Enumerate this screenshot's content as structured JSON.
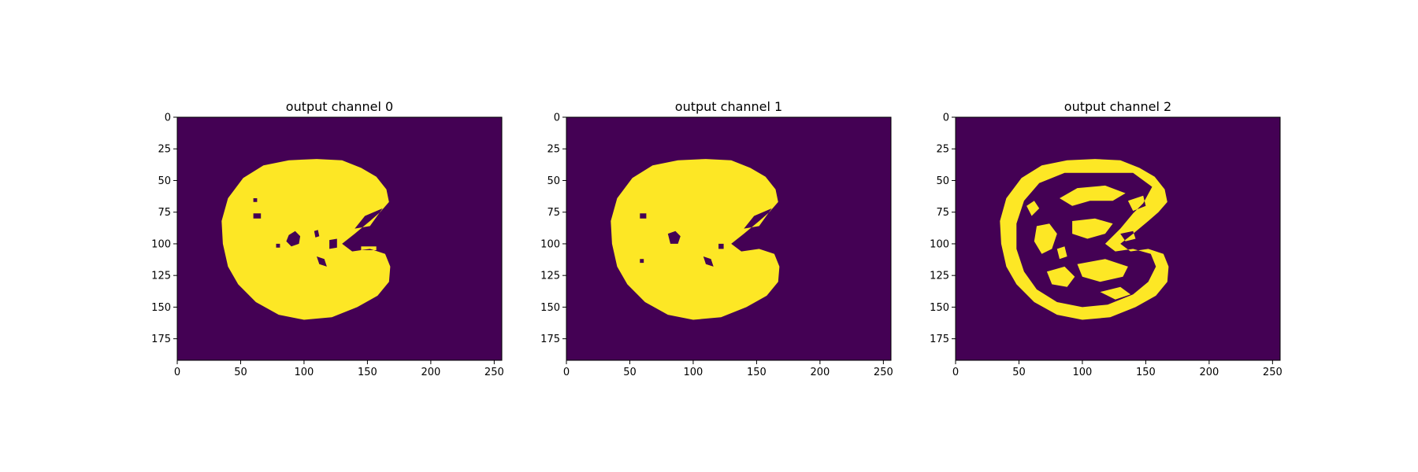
{
  "colors": {
    "background": "#440154",
    "foreground": "#fde725"
  },
  "chart_data": [
    {
      "type": "heatmap",
      "title": "output channel 0",
      "xlim": [
        0,
        256
      ],
      "ylim": [
        192,
        0
      ],
      "xticks": [
        0,
        50,
        100,
        150,
        200,
        250
      ],
      "yticks": [
        0,
        25,
        50,
        75,
        100,
        125,
        150,
        175
      ],
      "mask": {
        "outline": [
          [
            110,
            33
          ],
          [
            130,
            34
          ],
          [
            145,
            40
          ],
          [
            157,
            47
          ],
          [
            165,
            57
          ],
          [
            167,
            67
          ],
          [
            160,
            75
          ],
          [
            152,
            82
          ],
          [
            140,
            92
          ],
          [
            130,
            100
          ],
          [
            138,
            106
          ],
          [
            152,
            104
          ],
          [
            164,
            108
          ],
          [
            168,
            118
          ],
          [
            167,
            130
          ],
          [
            158,
            141
          ],
          [
            142,
            150
          ],
          [
            122,
            158
          ],
          [
            100,
            160
          ],
          [
            80,
            156
          ],
          [
            62,
            146
          ],
          [
            48,
            132
          ],
          [
            40,
            118
          ],
          [
            36,
            100
          ],
          [
            35,
            82
          ],
          [
            40,
            64
          ],
          [
            52,
            48
          ],
          [
            68,
            38
          ],
          [
            88,
            34
          ]
        ],
        "holes": [
          [
            [
              88,
              93
            ],
            [
              93,
              90
            ],
            [
              97,
              94
            ],
            [
              96,
              100
            ],
            [
              90,
              102
            ],
            [
              86,
              98
            ]
          ],
          [
            [
              60,
              76
            ],
            [
              66,
              76
            ],
            [
              66,
              80
            ],
            [
              60,
              80
            ]
          ],
          [
            [
              148,
              78
            ],
            [
              162,
              72
            ],
            [
              152,
              86
            ],
            [
              140,
              88
            ]
          ],
          [
            [
              120,
              97
            ],
            [
              126,
              96
            ],
            [
              126,
              103
            ],
            [
              120,
              104
            ]
          ],
          [
            [
              108,
              90
            ],
            [
              111,
              89
            ],
            [
              112,
              94
            ],
            [
              109,
              95
            ]
          ],
          [
            [
              145,
              102
            ],
            [
              157,
              102
            ],
            [
              157,
              105
            ],
            [
              145,
              105
            ]
          ],
          [
            [
              110,
              110
            ],
            [
              116,
              112
            ],
            [
              118,
              118
            ],
            [
              112,
              116
            ]
          ],
          [
            [
              60,
              64
            ],
            [
              63,
              64
            ],
            [
              63,
              67
            ],
            [
              60,
              67
            ]
          ],
          [
            [
              78,
              100
            ],
            [
              81,
              100
            ],
            [
              81,
              103
            ],
            [
              78,
              103
            ]
          ]
        ]
      }
    },
    {
      "type": "heatmap",
      "title": "output channel 1",
      "xlim": [
        0,
        256
      ],
      "ylim": [
        192,
        0
      ],
      "xticks": [
        0,
        50,
        100,
        150,
        200,
        250
      ],
      "yticks": [
        0,
        25,
        50,
        75,
        100,
        125,
        150,
        175
      ],
      "mask": {
        "outline": [
          [
            110,
            33
          ],
          [
            130,
            34
          ],
          [
            145,
            40
          ],
          [
            157,
            47
          ],
          [
            165,
            57
          ],
          [
            167,
            67
          ],
          [
            160,
            75
          ],
          [
            152,
            82
          ],
          [
            140,
            92
          ],
          [
            130,
            100
          ],
          [
            138,
            106
          ],
          [
            152,
            104
          ],
          [
            164,
            108
          ],
          [
            168,
            118
          ],
          [
            167,
            130
          ],
          [
            158,
            141
          ],
          [
            142,
            150
          ],
          [
            122,
            158
          ],
          [
            100,
            160
          ],
          [
            80,
            156
          ],
          [
            62,
            146
          ],
          [
            48,
            132
          ],
          [
            40,
            118
          ],
          [
            36,
            100
          ],
          [
            35,
            82
          ],
          [
            40,
            64
          ],
          [
            52,
            48
          ],
          [
            68,
            38
          ],
          [
            88,
            34
          ]
        ],
        "holes": [
          [
            [
              80,
              92
            ],
            [
              86,
              90
            ],
            [
              90,
              94
            ],
            [
              88,
              100
            ],
            [
              82,
              100
            ]
          ],
          [
            [
              58,
              76
            ],
            [
              63,
              76
            ],
            [
              63,
              80
            ],
            [
              58,
              80
            ]
          ],
          [
            [
              148,
              78
            ],
            [
              162,
              72
            ],
            [
              152,
              86
            ],
            [
              140,
              88
            ]
          ],
          [
            [
              108,
              110
            ],
            [
              114,
              112
            ],
            [
              116,
              118
            ],
            [
              110,
              116
            ]
          ],
          [
            [
              120,
              100
            ],
            [
              124,
              100
            ],
            [
              124,
              104
            ],
            [
              120,
              104
            ]
          ],
          [
            [
              58,
              112
            ],
            [
              61,
              112
            ],
            [
              61,
              115
            ],
            [
              58,
              115
            ]
          ]
        ]
      }
    },
    {
      "type": "heatmap",
      "title": "output channel 2",
      "xlim": [
        0,
        256
      ],
      "ylim": [
        192,
        0
      ],
      "xticks": [
        0,
        50,
        100,
        150,
        200,
        250
      ],
      "yticks": [
        0,
        25,
        50,
        75,
        100,
        125,
        150,
        175
      ],
      "mask": {
        "outline": [
          [
            110,
            33
          ],
          [
            130,
            34
          ],
          [
            145,
            40
          ],
          [
            157,
            47
          ],
          [
            165,
            57
          ],
          [
            167,
            67
          ],
          [
            160,
            75
          ],
          [
            152,
            82
          ],
          [
            140,
            92
          ],
          [
            130,
            100
          ],
          [
            138,
            106
          ],
          [
            152,
            104
          ],
          [
            164,
            108
          ],
          [
            168,
            118
          ],
          [
            167,
            130
          ],
          [
            158,
            141
          ],
          [
            142,
            150
          ],
          [
            122,
            158
          ],
          [
            100,
            160
          ],
          [
            80,
            156
          ],
          [
            62,
            146
          ],
          [
            48,
            132
          ],
          [
            40,
            118
          ],
          [
            36,
            100
          ],
          [
            35,
            82
          ],
          [
            40,
            64
          ],
          [
            52,
            48
          ],
          [
            68,
            38
          ],
          [
            88,
            34
          ]
        ],
        "holes": [
          [
            [
              110,
              44
            ],
            [
              140,
              44
            ],
            [
              155,
              55
            ],
            [
              148,
              68
            ],
            [
              140,
              76
            ],
            [
              130,
              88
            ],
            [
              118,
              100
            ],
            [
              126,
              106
            ],
            [
              140,
              104
            ],
            [
              154,
              108
            ],
            [
              158,
              118
            ],
            [
              152,
              130
            ],
            [
              140,
              140
            ],
            [
              120,
              148
            ],
            [
              100,
              150
            ],
            [
              80,
              146
            ],
            [
              64,
              136
            ],
            [
              54,
              122
            ],
            [
              48,
              104
            ],
            [
              48,
              84
            ],
            [
              54,
              66
            ],
            [
              66,
              52
            ],
            [
              86,
              44
            ]
          ]
        ],
        "islands": [
          [
            [
              96,
              56
            ],
            [
              118,
              54
            ],
            [
              134,
              60
            ],
            [
              124,
              66
            ],
            [
              106,
              66
            ],
            [
              92,
              70
            ],
            [
              82,
              64
            ]
          ],
          [
            [
              92,
              82
            ],
            [
              110,
              80
            ],
            [
              124,
              84
            ],
            [
              118,
              92
            ],
            [
              104,
              96
            ],
            [
              92,
              92
            ]
          ],
          [
            [
              64,
              86
            ],
            [
              74,
              84
            ],
            [
              80,
              92
            ],
            [
              76,
              104
            ],
            [
              68,
              108
            ],
            [
              62,
              98
            ]
          ],
          [
            [
              96,
              116
            ],
            [
              118,
              112
            ],
            [
              136,
              118
            ],
            [
              132,
              126
            ],
            [
              114,
              130
            ],
            [
              100,
              126
            ]
          ],
          [
            [
              72,
              122
            ],
            [
              86,
              118
            ],
            [
              94,
              126
            ],
            [
              88,
              134
            ],
            [
              76,
              132
            ]
          ],
          [
            [
              136,
              66
            ],
            [
              148,
              62
            ],
            [
              150,
              70
            ],
            [
              140,
              74
            ]
          ],
          [
            [
              56,
              70
            ],
            [
              62,
              66
            ],
            [
              66,
              72
            ],
            [
              60,
              78
            ]
          ],
          [
            [
              114,
              138
            ],
            [
              130,
              134
            ],
            [
              138,
              140
            ],
            [
              126,
              144
            ]
          ],
          [
            [
              130,
              92
            ],
            [
              140,
              90
            ],
            [
              142,
              96
            ],
            [
              134,
              98
            ]
          ],
          [
            [
              80,
              104
            ],
            [
              86,
              102
            ],
            [
              88,
              110
            ],
            [
              82,
              112
            ]
          ]
        ]
      }
    }
  ]
}
